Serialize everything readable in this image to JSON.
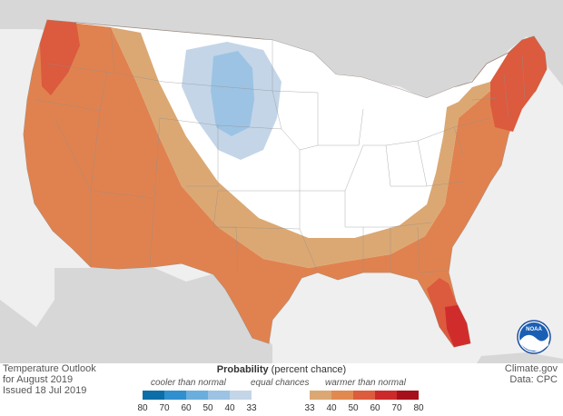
{
  "caption": {
    "line1": "Temperature Outlook",
    "line2": "for August 2019",
    "line3": "Issued 18 Jul 2019"
  },
  "credit": {
    "site": "Climate.gov",
    "data": "Data: CPC"
  },
  "logo_text": "NOAA",
  "legend": {
    "title_bold": "Probability",
    "title_rest": "(percent chance)",
    "cooler_label": "cooler than normal",
    "equal_label": "equal chances",
    "warmer_label": "warmer than normal",
    "cool_ticks": [
      "80",
      "70",
      "60",
      "50",
      "40",
      "33"
    ],
    "warm_ticks": [
      "33",
      "40",
      "50",
      "60",
      "70",
      "80"
    ],
    "cool_colors": [
      "#0b6ea9",
      "#2f8fcf",
      "#6aaedd",
      "#9cc3e3",
      "#c4d5e8"
    ],
    "equal_color": "#ffffff",
    "warm_colors": [
      "#dba873",
      "#e2894f",
      "#dd5c3d",
      "#cc2a2a",
      "#a5101b"
    ]
  },
  "colors": {
    "land_outside": "#d7d7d7",
    "water": "#efefef",
    "warm_40_50": "#e0824f",
    "warm_33_40": "#dba873",
    "warm_50_60": "#dc5a3e",
    "warm_60_70": "#d12c2c",
    "cool_33_40": "#c4d5e8",
    "cool_40_50": "#9cc3e3"
  }
}
